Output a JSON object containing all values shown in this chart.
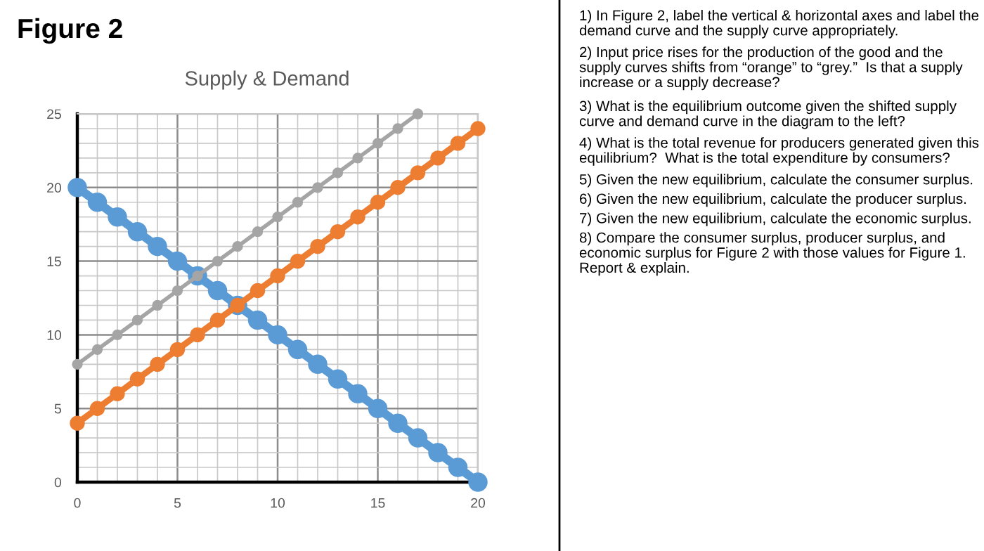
{
  "chart_data": {
    "type": "line",
    "title": "Figure 2",
    "subtitle": "Supply & Demand",
    "x": [
      0,
      1,
      2,
      3,
      4,
      5,
      6,
      7,
      8,
      9,
      10,
      11,
      12,
      13,
      14,
      15,
      16,
      17,
      18,
      19,
      20
    ],
    "series": [
      {
        "color": "#5b9bd5",
        "values": [
          20,
          19,
          18,
          17,
          16,
          15,
          14,
          13,
          12,
          11,
          10,
          9,
          8,
          7,
          6,
          5,
          4,
          3,
          2,
          1,
          0
        ]
      },
      {
        "color": "#ed7d31",
        "values": [
          4,
          5,
          6,
          7,
          8,
          9,
          10,
          11,
          12,
          13,
          14,
          15,
          16,
          17,
          18,
          19,
          20,
          21,
          22,
          23,
          24
        ]
      },
      {
        "color": "#a5a5a5",
        "values": [
          8,
          9,
          10,
          11,
          12,
          13,
          14,
          15,
          16,
          17,
          18,
          19,
          20,
          21,
          22,
          23,
          24,
          25,
          null,
          null,
          null
        ]
      }
    ],
    "xlim": [
      0,
      20
    ],
    "xticks": [
      0,
      5,
      10,
      15,
      20
    ],
    "ylim": [
      0,
      25
    ],
    "yticks": [
      0,
      5,
      10,
      15,
      20,
      25
    ],
    "grid": true,
    "marker": "circle",
    "line_style": "solid",
    "annotations": [
      "1) In Figure 2, label the vertical & horizontal axes and label the demand curve and the supply curve appropriately.",
      "2) Input price rises for the production of the good and the supply curves shifts from “orange” to “grey.”  Is that a supply increase or a supply decrease?",
      "3) What is the equilibrium outcome given the shifted supply curve and demand curve in the diagram to the left?",
      "4) What is the total revenue for producers generated given this equilibrium?  What is the total expenditure by consumers?",
      "5) Given the new equilibrium, calculate the consumer surplus.",
      "6) Given the new equilibrium, calculate the producer surplus.",
      "7) Given the new equilibrium, calculate the economic surplus.",
      "8) Compare the consumer surplus, producer surplus, and economic surplus for Figure 2 with those values for Figure 1.  Report & explain."
    ]
  }
}
